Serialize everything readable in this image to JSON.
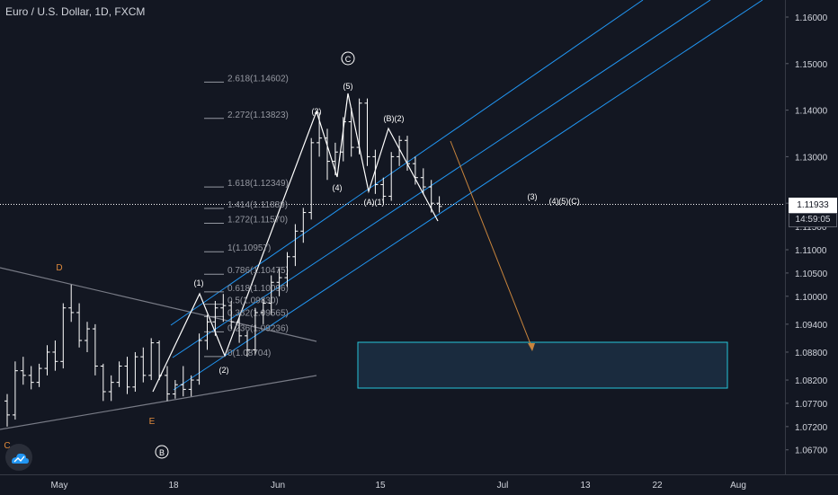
{
  "header": {
    "title": "Euro / U.S. Dollar, 1D, FXCM"
  },
  "price_axis": {
    "ticks": [
      "1.16000",
      "1.15000",
      "1.14000",
      "1.13000",
      "1.12000",
      "1.11000",
      "1.10500",
      "1.10000",
      "1.09400",
      "1.08800",
      "1.08200",
      "1.07700",
      "1.07200",
      "1.06700"
    ],
    "current_price": "1.11933",
    "countdown": "14:59:05",
    "obscured_label": "1.11500"
  },
  "time_axis": {
    "labels": [
      "May",
      "18",
      "Jun",
      "15",
      "Jul",
      "13",
      "22",
      "Aug"
    ]
  },
  "colors": {
    "background": "#131722",
    "candle": "#ffffff",
    "channel": "#2196f3",
    "wave": "#ffffff",
    "arrow": "#c8843c",
    "box_border": "#26c6da",
    "box_fill": "#1a2b3e",
    "trendline": "#787b86",
    "fib": "#9598a1",
    "label_orange": "#e08a3c"
  },
  "fib_levels": [
    {
      "label": "2.618(1.14602)",
      "price": 1.14602
    },
    {
      "label": "2.272(1.13823)",
      "price": 1.13823
    },
    {
      "label": "1.618(1.12349)",
      "price": 1.12349
    },
    {
      "label": "1.414(1.11889)",
      "price": 1.11889
    },
    {
      "label": "1.272(1.11570)",
      "price": 1.1157
    },
    {
      "label": "1(1.10957)",
      "price": 1.10957
    },
    {
      "label": "0.786(1.10475)",
      "price": 1.10475
    },
    {
      "label": "0.618(1.10096)",
      "price": 1.10096
    },
    {
      "label": "0.5(1.09830)",
      "price": 1.0983
    },
    {
      "label": "0.382(1.09565)",
      "price": 1.09565
    },
    {
      "label": "0.236(1.09236)",
      "price": 1.09236
    },
    {
      "label": "0(1.08704)",
      "price": 1.08704
    }
  ],
  "wave_labels": {
    "w1": "(1)",
    "w2": "(2)",
    "w3": "(3)",
    "w4": "(4)",
    "w5": "(5)",
    "A1": "(A)(1)",
    "B2": "(B)(2)",
    "C_circle": "C",
    "B_circle": "B",
    "D": "D",
    "E": "E",
    "C_corner": "C",
    "proj3": "(3)",
    "proj4": "(4)",
    "proj5C": "(5)(C)"
  },
  "chart_data": {
    "type": "candlestick",
    "title": "Euro / U.S. Dollar, 1D, FXCM",
    "ylim": [
      1.0655,
      1.1655
    ],
    "grid": false,
    "y_ticks": [
      1.16,
      1.15,
      1.14,
      1.13,
      1.12,
      1.11,
      1.105,
      1.1,
      1.094,
      1.088,
      1.082,
      1.077,
      1.072,
      1.067
    ],
    "last_price": 1.11933,
    "bars": [
      [
        1.0775,
        1.079,
        1.072,
        1.0745
      ],
      [
        1.0745,
        1.086,
        1.0735,
        1.084
      ],
      [
        1.084,
        1.087,
        1.081,
        1.083
      ],
      [
        1.083,
        1.085,
        1.08,
        1.0815
      ],
      [
        1.0815,
        1.0855,
        1.0805,
        1.0845
      ],
      [
        1.0845,
        1.0895,
        1.083,
        1.088
      ],
      [
        1.088,
        1.0905,
        1.084,
        1.086
      ],
      [
        1.086,
        1.0985,
        1.0845,
        1.0975
      ],
      [
        1.0975,
        1.1025,
        1.0945,
        1.0965
      ],
      [
        1.0965,
        1.0985,
        1.089,
        1.0905
      ],
      [
        1.0905,
        1.0945,
        1.088,
        1.093
      ],
      [
        1.093,
        1.094,
        1.083,
        1.085
      ],
      [
        1.085,
        1.0855,
        1.0775,
        1.0795
      ],
      [
        1.0795,
        1.083,
        1.0775,
        1.0815
      ],
      [
        1.0815,
        1.086,
        1.0805,
        1.085
      ],
      [
        1.085,
        1.087,
        1.079,
        1.0805
      ],
      [
        1.0805,
        1.088,
        1.0795,
        1.087
      ],
      [
        1.087,
        1.089,
        1.0815,
        1.083
      ],
      [
        1.083,
        1.091,
        1.082,
        1.09
      ],
      [
        1.09,
        1.0905,
        1.082,
        1.083
      ],
      [
        1.083,
        1.085,
        1.0775,
        1.079
      ],
      [
        1.079,
        1.082,
        1.078,
        1.081
      ],
      [
        1.081,
        1.085,
        1.0785,
        1.08
      ],
      [
        1.08,
        1.083,
        1.0785,
        1.082
      ],
      [
        1.082,
        1.092,
        1.081,
        1.0905
      ],
      [
        1.0905,
        1.096,
        1.0885,
        1.0945
      ],
      [
        1.0945,
        1.099,
        1.0915,
        1.0975
      ],
      [
        1.0975,
        1.1005,
        1.0945,
        1.098
      ],
      [
        1.098,
        1.099,
        1.093,
        1.0945
      ],
      [
        1.0945,
        1.0955,
        1.09,
        1.0915
      ],
      [
        1.0915,
        1.0925,
        1.087,
        1.0885
      ],
      [
        1.0885,
        1.0975,
        1.0875,
        1.0965
      ],
      [
        1.0965,
        1.0995,
        1.094,
        1.0985
      ],
      [
        1.0985,
        1.1045,
        1.096,
        1.103
      ],
      [
        1.103,
        1.106,
        1.1,
        1.104
      ],
      [
        1.104,
        1.1095,
        1.102,
        1.1085
      ],
      [
        1.1085,
        1.1155,
        1.1065,
        1.114
      ],
      [
        1.114,
        1.119,
        1.1115,
        1.118
      ],
      [
        1.118,
        1.134,
        1.1165,
        1.133
      ],
      [
        1.133,
        1.1395,
        1.13,
        1.134
      ],
      [
        1.134,
        1.136,
        1.125,
        1.129
      ],
      [
        1.129,
        1.133,
        1.126,
        1.131
      ],
      [
        1.131,
        1.1385,
        1.129,
        1.1375
      ],
      [
        1.1375,
        1.1405,
        1.13,
        1.132
      ],
      [
        1.132,
        1.1425,
        1.1305,
        1.1415
      ],
      [
        1.1415,
        1.1425,
        1.128,
        1.13
      ],
      [
        1.13,
        1.1315,
        1.122,
        1.124
      ],
      [
        1.124,
        1.1255,
        1.12,
        1.1215
      ],
      [
        1.1215,
        1.131,
        1.1205,
        1.13
      ],
      [
        1.13,
        1.1345,
        1.128,
        1.1335
      ],
      [
        1.1335,
        1.1345,
        1.127,
        1.1285
      ],
      [
        1.1285,
        1.13,
        1.124,
        1.1255
      ],
      [
        1.1255,
        1.1275,
        1.122,
        1.1235
      ],
      [
        1.1235,
        1.125,
        1.118,
        1.12
      ],
      [
        1.12,
        1.1215,
        1.118,
        1.1193
      ]
    ]
  }
}
